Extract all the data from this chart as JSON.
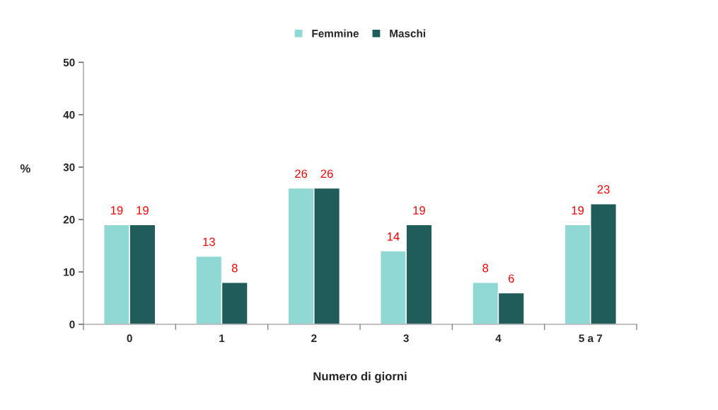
{
  "chart_data": {
    "type": "bar",
    "xlabel": "Numero di giorni",
    "ylabel": "%",
    "categories": [
      "0",
      "1",
      "2",
      "3",
      "4",
      "5 a 7"
    ],
    "series": [
      {
        "name": "Femmine",
        "color": "#8fd8d4",
        "values": [
          19,
          13,
          26,
          14,
          8,
          19
        ]
      },
      {
        "name": "Maschi",
        "color": "#1f5c5a",
        "values": [
          19,
          8,
          26,
          19,
          6,
          23
        ]
      }
    ],
    "ylim": [
      0,
      50
    ],
    "yticks": [
      0,
      10,
      20,
      30,
      40,
      50
    ],
    "grid": false,
    "legend": "top",
    "data_labels": true
  }
}
